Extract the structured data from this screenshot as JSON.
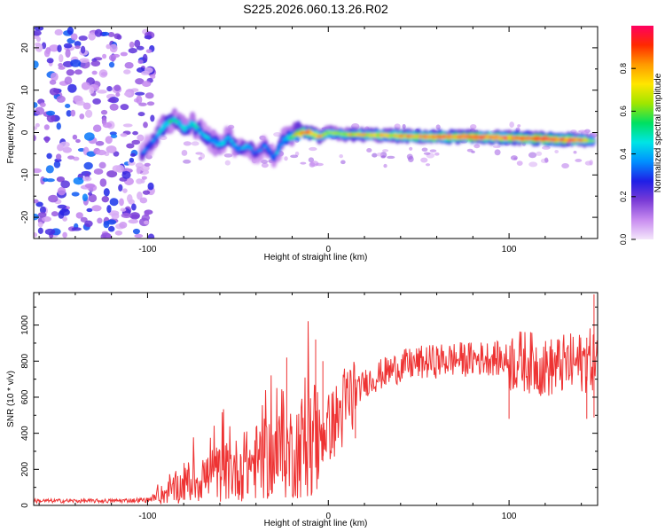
{
  "title": "S225.2026.060.13.26.R02",
  "chart_data": [
    {
      "type": "heatmap",
      "name": "spectrogram",
      "xlabel": "Height of straight line (km)",
      "ylabel": "Frequency (Hz)",
      "xlim": [
        -163,
        149
      ],
      "ylim": [
        -25,
        25
      ],
      "xticks": [
        -100,
        0,
        100
      ],
      "yticks": [
        -20,
        -10,
        0,
        10,
        20
      ],
      "colorbar": {
        "label": "Normalized spectral amplitude",
        "range": [
          0,
          1
        ],
        "ticks": [
          0.0,
          0.2,
          0.4,
          0.6,
          0.8
        ],
        "tick_labels": [
          "0.0",
          "0.2",
          "0.4",
          "0.6",
          "0.8"
        ],
        "colors": [
          "#f4e6fb",
          "#c88cf0",
          "#7a3bd6",
          "#1f1fe6",
          "#0090ff",
          "#00e5e5",
          "#00e060",
          "#a0e600",
          "#ffe600",
          "#ff9a00",
          "#ff2a00",
          "#ff0060"
        ]
      },
      "ridge": {
        "x": [
          -103,
          -95,
          -90,
          -85,
          -80,
          -75,
          -70,
          -65,
          -60,
          -55,
          -50,
          -45,
          -40,
          -35,
          -30,
          -25,
          -20,
          -15,
          -10,
          -5,
          0,
          10,
          20,
          40,
          60,
          80,
          100,
          120,
          140,
          147
        ],
        "freq": [
          -5,
          -1,
          2,
          3,
          1,
          2,
          0,
          -2,
          -3,
          -1,
          -4,
          -3,
          -5,
          -3,
          -6,
          -2,
          -1,
          0,
          0,
          -1,
          0,
          -0.5,
          -0.5,
          -0.8,
          -1,
          -1,
          -1.2,
          -1.5,
          -1.8,
          -2
        ],
        "amp": [
          0.3,
          0.35,
          0.5,
          0.45,
          0.4,
          0.45,
          0.4,
          0.35,
          0.4,
          0.4,
          0.35,
          0.35,
          0.3,
          0.3,
          0.35,
          0.4,
          0.55,
          0.8,
          0.85,
          0.7,
          0.6,
          0.65,
          0.7,
          0.75,
          0.85,
          0.9,
          0.85,
          0.95,
          0.85,
          0.5
        ]
      }
    },
    {
      "type": "line",
      "name": "snr",
      "xlabel": "Height of straight line (km)",
      "ylabel": "SNR (10 * v/v)",
      "xlim": [
        -163,
        149
      ],
      "ylim": [
        0,
        1180
      ],
      "xticks": [
        -100,
        0,
        100
      ],
      "yticks": [
        0,
        200,
        400,
        600,
        800,
        1000
      ],
      "color": "#ee3333",
      "trend": {
        "x": [
          -163,
          -120,
          -100,
          -90,
          -80,
          -70,
          -60,
          -50,
          -40,
          -30,
          -20,
          -15,
          -10,
          -5,
          0,
          5,
          10,
          15,
          20,
          30,
          40,
          50,
          60,
          70,
          80,
          90,
          100,
          110,
          120,
          130,
          140,
          149
        ],
        "y": [
          25,
          25,
          30,
          70,
          110,
          150,
          180,
          200,
          240,
          270,
          300,
          330,
          370,
          390,
          430,
          480,
          560,
          620,
          680,
          730,
          770,
          790,
          800,
          810,
          810,
          820,
          800,
          800,
          760,
          780,
          790,
          820
        ]
      },
      "spikes": {
        "x": [
          -23,
          -7,
          -3,
          15,
          100,
          143,
          147
        ],
        "y": [
          820,
          920,
          800,
          700,
          780,
          930,
          1170
        ]
      }
    }
  ]
}
